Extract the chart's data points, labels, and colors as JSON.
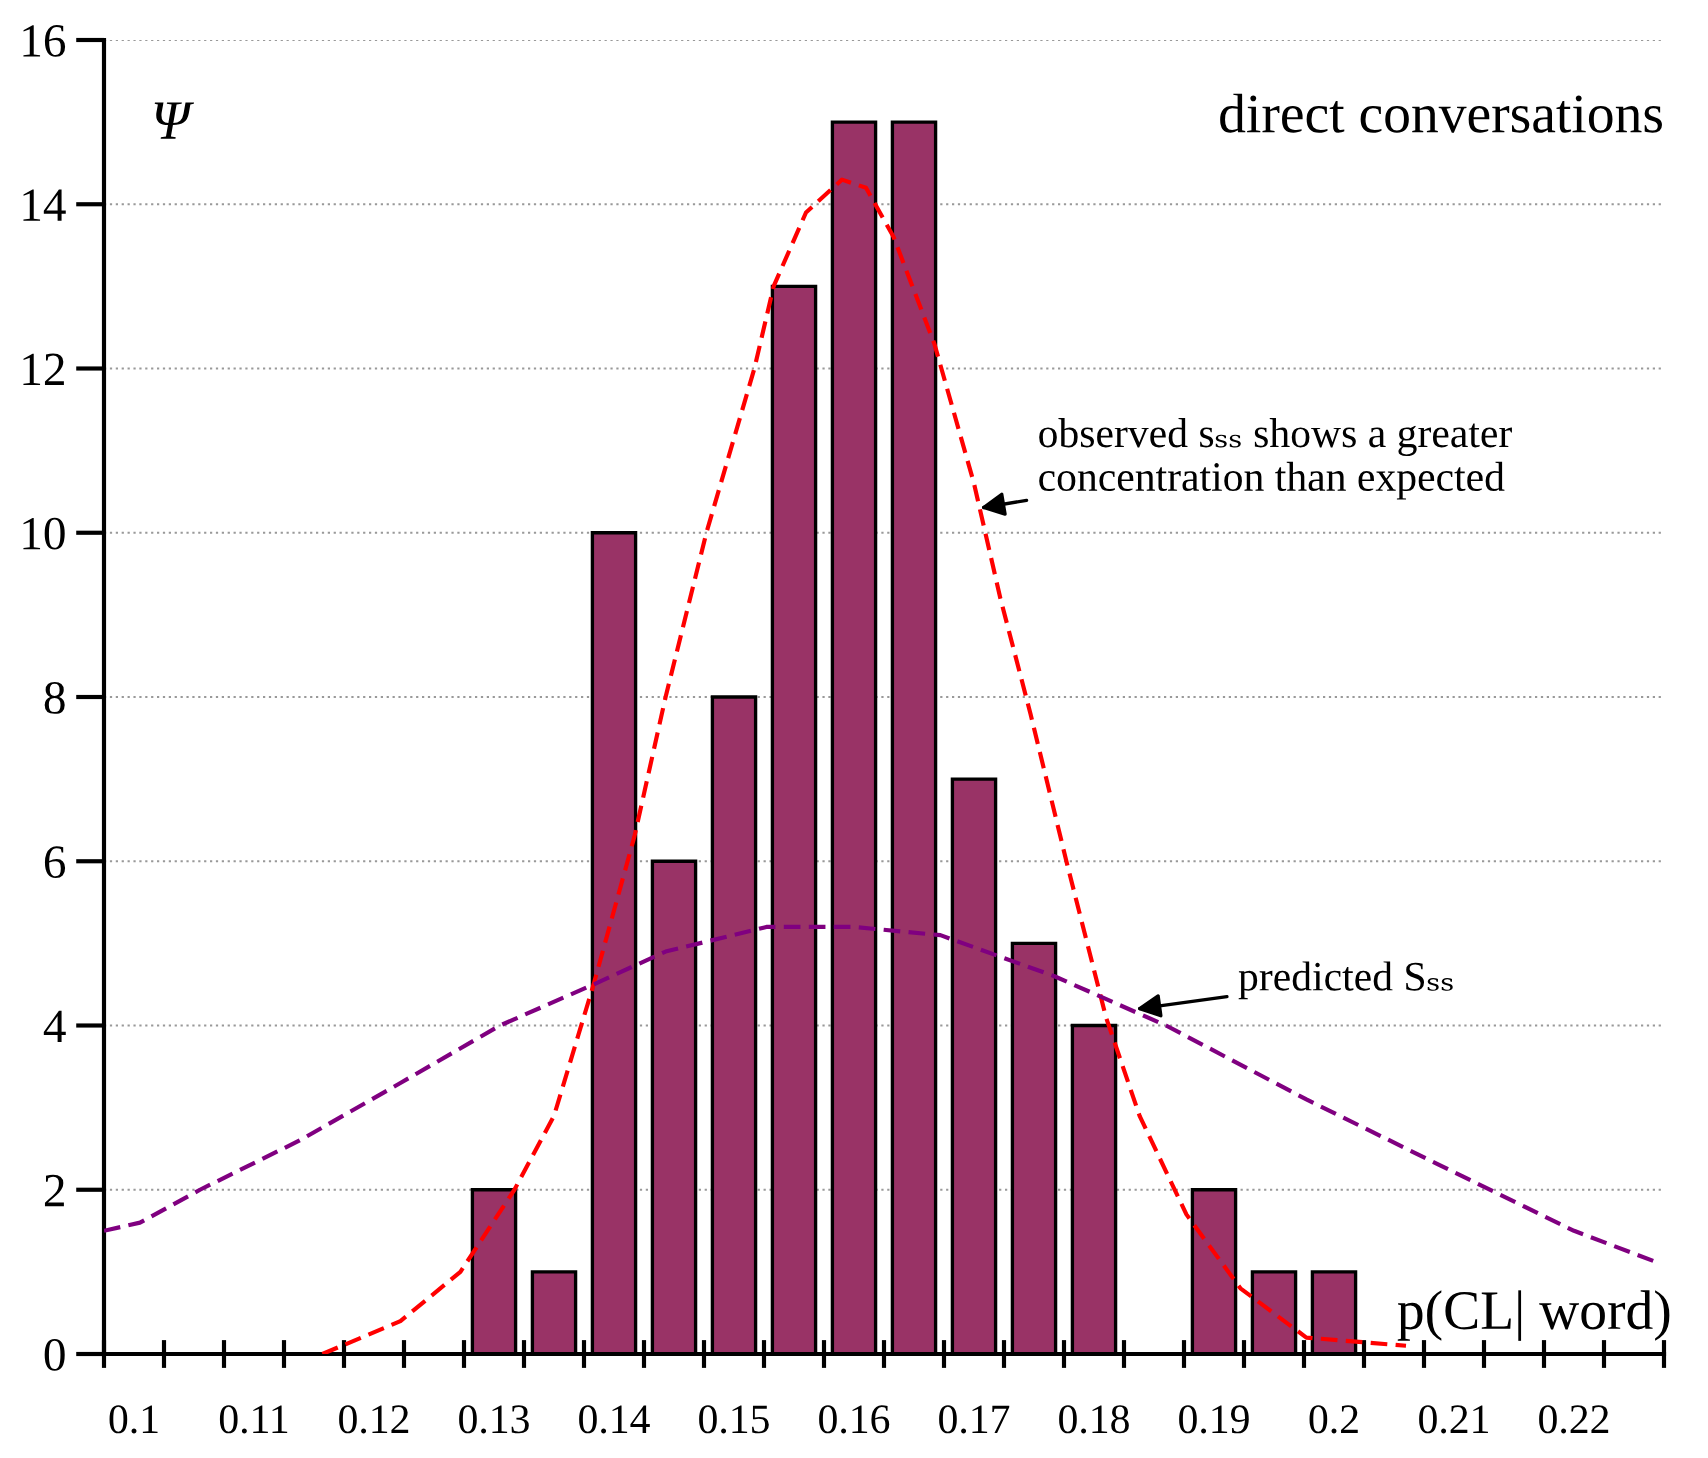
{
  "chart_data": {
    "type": "bar",
    "title": "direct conversations",
    "xlabel": "p(CL| word)",
    "ylabel": "Ψ",
    "x": [
      0.13,
      0.135,
      0.14,
      0.145,
      0.15,
      0.155,
      0.16,
      0.165,
      0.17,
      0.175,
      0.18,
      0.185,
      0.19,
      0.195,
      0.2
    ],
    "series": [
      {
        "color": "#993366",
        "values": [
          2,
          1,
          10,
          6,
          8,
          13,
          15,
          15,
          7,
          5,
          4,
          null,
          2,
          1,
          1
        ]
      },
      {
        "type": "line",
        "color": "#ff0000",
        "line_style": "dashed",
        "x": [
          0.1157,
          0.1222,
          0.1272,
          0.1317,
          0.135,
          0.1383,
          0.1417,
          0.1443,
          0.1477,
          0.1517,
          0.1533,
          0.156,
          0.159,
          0.161,
          0.1633,
          0.1667,
          0.17,
          0.1722,
          0.1747,
          0.1777,
          0.181,
          0.1838,
          0.1877,
          0.1922,
          0.1977,
          0.206
        ],
        "values": [
          0.0,
          0.4,
          1.0,
          2.0,
          2.9,
          4.5,
          6.3,
          8.0,
          10.0,
          12.0,
          13.0,
          13.9,
          14.3,
          14.2,
          13.6,
          12.3,
          10.6,
          9.2,
          7.8,
          6.0,
          4.1,
          2.9,
          1.7,
          0.8,
          0.2,
          0.1
        ]
      },
      {
        "type": "line",
        "color": "#800080",
        "line_style": "dashed",
        "x": [
          0.0975,
          0.1005,
          0.1055,
          0.1138,
          0.1222,
          0.1305,
          0.1383,
          0.1443,
          0.1527,
          0.16,
          0.1672,
          0.1767,
          0.186,
          0.1977,
          0.2088,
          0.22,
          0.2272
        ],
        "values": [
          1.5,
          1.6,
          2.0,
          2.6,
          3.3,
          4.0,
          4.5,
          4.9,
          5.2,
          5.2,
          5.1,
          4.6,
          4.0,
          3.1,
          2.3,
          1.5,
          1.1
        ]
      }
    ],
    "annotations": [
      {
        "text": "observed sₛₛ shows a greater\nconcentration than expected",
        "x": 0.1705,
        "y": 10.3
      },
      {
        "text": "predicted Sₛₛ",
        "x": 0.1835,
        "y": 4.2
      }
    ],
    "xlim": [
      0.0975,
      0.2275
    ],
    "xticks": [
      {
        "value": 0.1,
        "label": "0.1"
      },
      0.11,
      0.12,
      0.13,
      0.14,
      0.15,
      0.16,
      0.17,
      0.18,
      0.19,
      {
        "value": 0.2,
        "label": "0.2"
      },
      0.21,
      0.22,
      {
        "value": 0.0975,
        "label": null
      },
      {
        "value": 0.1025,
        "label": null
      },
      {
        "value": 0.1075,
        "label": null
      },
      {
        "value": 0.1125,
        "label": null
      },
      {
        "value": 0.1175,
        "label": null
      },
      {
        "value": 0.1225,
        "label": null
      },
      {
        "value": 0.1275,
        "label": null
      },
      {
        "value": 0.1325,
        "label": null
      },
      {
        "value": 0.1375,
        "label": null
      },
      {
        "value": 0.1425,
        "label": null
      },
      {
        "value": 0.1475,
        "label": null
      },
      {
        "value": 0.1525,
        "label": null
      },
      {
        "value": 0.1575,
        "label": null
      },
      {
        "value": 0.1625,
        "label": null
      },
      {
        "value": 0.1675,
        "label": null
      },
      {
        "value": 0.1725,
        "label": null
      },
      {
        "value": 0.1775,
        "label": null
      },
      {
        "value": 0.1825,
        "label": null
      },
      {
        "value": 0.1875,
        "label": null
      },
      {
        "value": 0.1925,
        "label": null
      },
      {
        "value": 0.1975,
        "label": null
      },
      {
        "value": 0.2025,
        "label": null
      },
      {
        "value": 0.2075,
        "label": null
      },
      {
        "value": 0.2125,
        "label": null
      },
      {
        "value": 0.2175,
        "label": null
      },
      {
        "value": 0.2225,
        "label": null
      },
      {
        "value": 0.2275,
        "label": null
      }
    ],
    "ylim": [
      0,
      16
    ],
    "yticks": [
      0,
      2,
      4,
      6,
      8,
      10,
      12,
      14,
      16
    ],
    "grid": "y"
  }
}
